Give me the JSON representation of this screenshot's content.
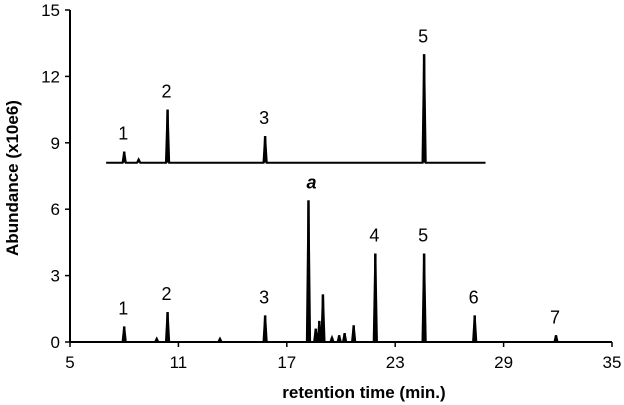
{
  "chart_data": {
    "type": "line",
    "xlabel": "retention time (min.)",
    "ylabel": "Abundance (x10e6)",
    "xlim": [
      5,
      35
    ],
    "ylim": [
      0,
      15
    ],
    "x_ticks": [
      "5",
      "11",
      "17",
      "23",
      "29",
      "35"
    ],
    "y_ticks": [
      "0",
      "3",
      "6",
      "9",
      "12",
      "15"
    ],
    "grid": false,
    "legend": "none",
    "series": [
      {
        "trace": "upper",
        "baseline": 8.1,
        "x_start": 7.0,
        "x_end": 28.0,
        "peaks": [
          {
            "x": 8.0,
            "height": 0.5,
            "label": "1"
          },
          {
            "x": 8.8,
            "height": 0.15,
            "label": ""
          },
          {
            "x": 10.4,
            "height": 2.4,
            "label": "2"
          },
          {
            "x": 15.8,
            "height": 1.2,
            "label": "3"
          },
          {
            "x": 24.6,
            "height": 4.9,
            "label": "5"
          }
        ]
      },
      {
        "trace": "lower",
        "baseline": 0.0,
        "x_start": 7.5,
        "x_end": 33.0,
        "peaks": [
          {
            "x": 8.0,
            "height": 0.7,
            "label": "1"
          },
          {
            "x": 9.8,
            "height": 0.15,
            "label": ""
          },
          {
            "x": 10.4,
            "height": 1.35,
            "label": "2"
          },
          {
            "x": 13.3,
            "height": 0.15,
            "label": ""
          },
          {
            "x": 15.8,
            "height": 1.2,
            "label": "3"
          },
          {
            "x": 18.2,
            "height": 6.4,
            "label": "a"
          },
          {
            "x": 18.6,
            "height": 0.6,
            "label": ""
          },
          {
            "x": 18.8,
            "height": 0.95,
            "label": ""
          },
          {
            "x": 19.0,
            "height": 2.15,
            "label": ""
          },
          {
            "x": 19.5,
            "height": 0.2,
            "label": ""
          },
          {
            "x": 19.9,
            "height": 0.3,
            "label": ""
          },
          {
            "x": 20.2,
            "height": 0.4,
            "label": ""
          },
          {
            "x": 20.7,
            "height": 0.75,
            "label": ""
          },
          {
            "x": 21.9,
            "height": 4.0,
            "label": "4"
          },
          {
            "x": 24.6,
            "height": 4.0,
            "label": "5"
          },
          {
            "x": 27.4,
            "height": 1.2,
            "label": "6"
          },
          {
            "x": 31.9,
            "height": 0.3,
            "label": "7"
          }
        ]
      }
    ]
  }
}
